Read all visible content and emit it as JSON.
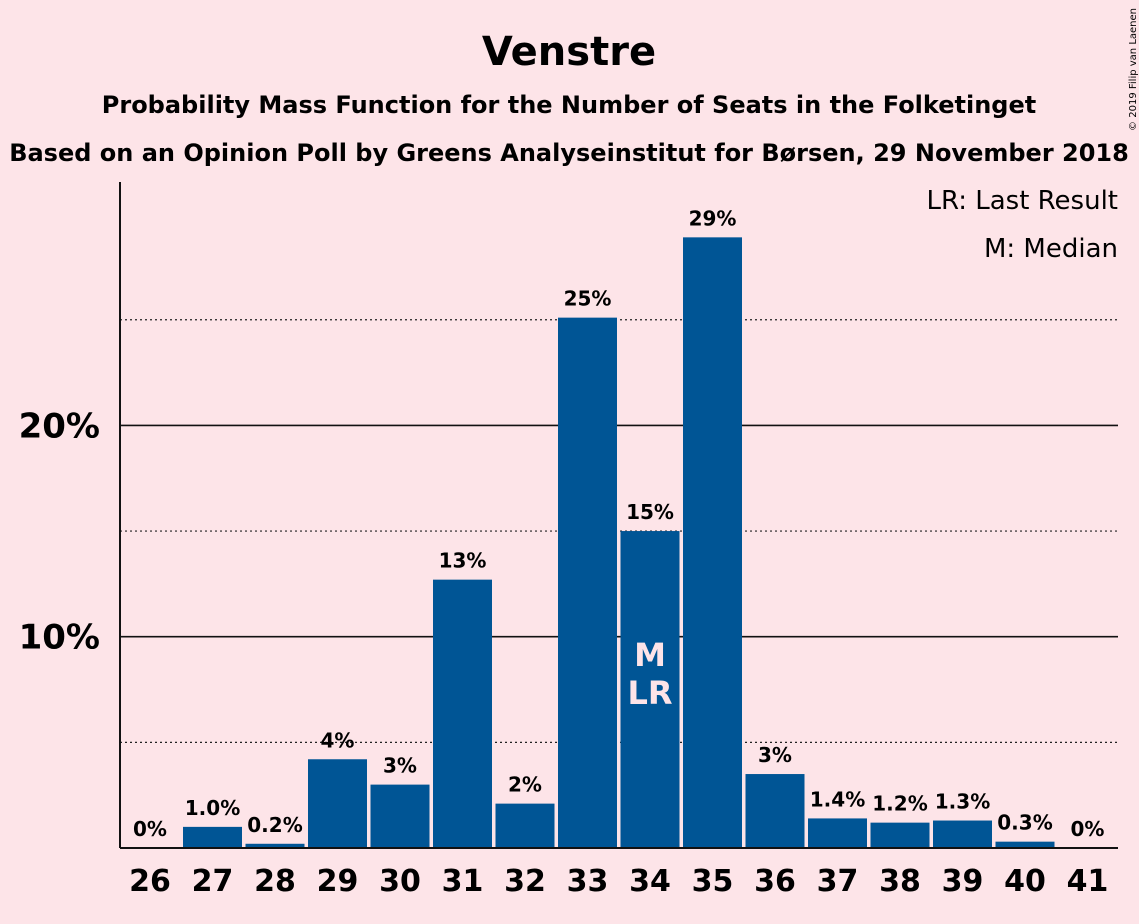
{
  "chart_data": {
    "type": "bar",
    "title": "Venstre",
    "subtitle": "Probability Mass Function for the Number of Seats in the Folketinget",
    "subtitle2": "Based on an Opinion Poll by Greens Analyseinstitut for Børsen, 29 November 2018",
    "copyright": "© 2019 Filip van Laenen",
    "legend": [
      "LR: Last Result",
      "M: Median"
    ],
    "legend_position": "top-right",
    "categories": [
      "26",
      "27",
      "28",
      "29",
      "30",
      "31",
      "32",
      "33",
      "34",
      "35",
      "36",
      "37",
      "38",
      "39",
      "40",
      "41"
    ],
    "values": [
      0,
      1.0,
      0.2,
      4.2,
      3.0,
      12.7,
      2.1,
      25.1,
      15.0,
      28.9,
      3.5,
      1.4,
      1.2,
      1.3,
      0.3,
      0
    ],
    "data_labels": [
      "0%",
      "1.0%",
      "0.2%",
      "4%",
      "3%",
      "13%",
      "2%",
      "25%",
      "15%",
      "29%",
      "3%",
      "1.4%",
      "1.2%",
      "1.3%",
      "0.3%",
      "0%"
    ],
    "ylim": [
      0,
      31.5
    ],
    "yticks": [
      {
        "value": 10,
        "label": "10%"
      },
      {
        "value": 20,
        "label": "20%"
      }
    ],
    "minor_gridlines": [
      5,
      15,
      25
    ],
    "annotations": [
      {
        "category": "34",
        "lines": [
          "M",
          "LR"
        ]
      }
    ],
    "bar_color": "#005595"
  }
}
